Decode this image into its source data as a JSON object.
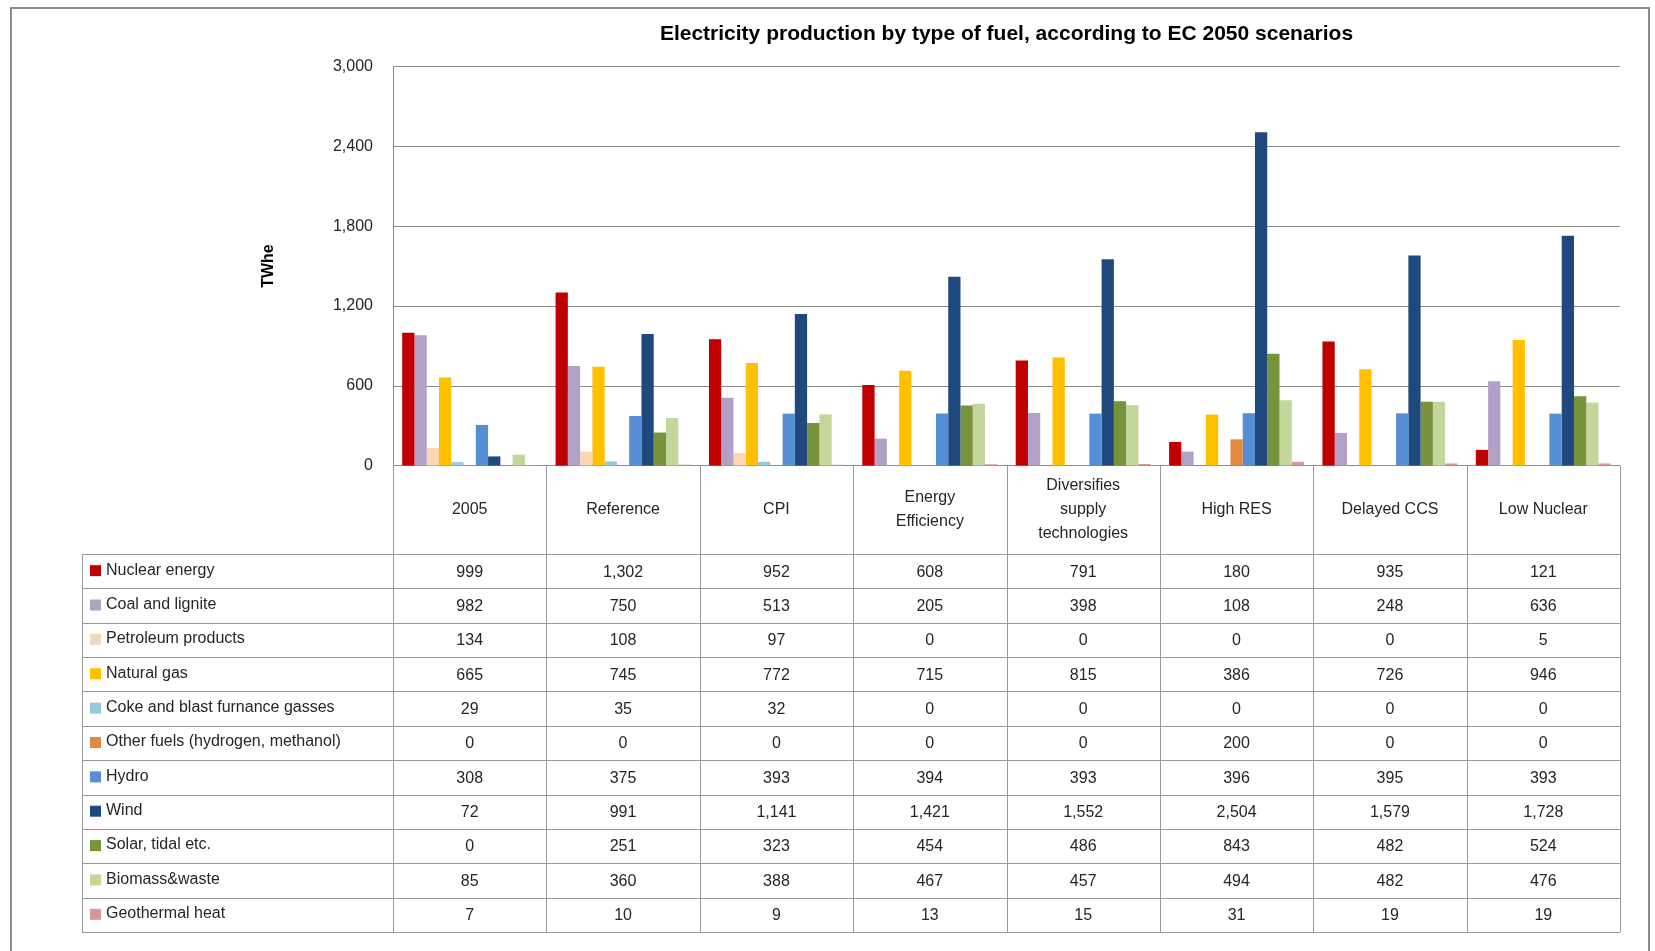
{
  "chart_data": {
    "type": "bar",
    "title": "Electricity production by type of fuel, according to EC 2050 scenarios",
    "ylabel": "TWhe",
    "categories": [
      "2005",
      "Reference",
      "CPI",
      "Energy Efficiency",
      "Diversifies supply technologies",
      "High RES",
      "Delayed CCS",
      "Low Nuclear"
    ],
    "series": [
      {
        "name": "Nuclear energy",
        "color": "#c00000",
        "values": [
          999,
          1302,
          952,
          608,
          791,
          180,
          935,
          121
        ],
        "value_labels": [
          "999",
          "1,302",
          "952",
          "608",
          "791",
          "180",
          "935",
          "121"
        ]
      },
      {
        "name": "Coal and lignite",
        "color": "#b2a1c7",
        "values": [
          982,
          750,
          513,
          205,
          398,
          108,
          248,
          636
        ],
        "value_labels": [
          "982",
          "750",
          "513",
          "205",
          "398",
          "108",
          "248",
          "636"
        ]
      },
      {
        "name": "Petroleum products",
        "color": "#fcd5b5",
        "values": [
          134,
          108,
          97,
          0,
          0,
          0,
          0,
          5
        ],
        "value_labels": [
          "134",
          "108",
          "97",
          "0",
          "0",
          "0",
          "0",
          "5"
        ]
      },
      {
        "name": "Natural gas",
        "color": "#ffc000",
        "values": [
          665,
          745,
          772,
          715,
          815,
          386,
          726,
          946
        ],
        "value_labels": [
          "665",
          "745",
          "772",
          "715",
          "815",
          "386",
          "726",
          "946"
        ]
      },
      {
        "name": "Coke and blast furnance gasses",
        "color": "#92cddc",
        "values": [
          29,
          35,
          32,
          0,
          0,
          0,
          0,
          0
        ],
        "value_labels": [
          "29",
          "35",
          "32",
          "0",
          "0",
          "0",
          "0",
          "0"
        ]
      },
      {
        "name": "Other fuels (hydrogen, methanol)",
        "color": "#e2893f",
        "values": [
          0,
          0,
          0,
          0,
          0,
          200,
          0,
          0
        ],
        "value_labels": [
          "0",
          "0",
          "0",
          "0",
          "0",
          "200",
          "0",
          "0"
        ]
      },
      {
        "name": "Hydro",
        "color": "#558ed5",
        "values": [
          308,
          375,
          393,
          394,
          393,
          396,
          395,
          393
        ],
        "value_labels": [
          "308",
          "375",
          "393",
          "394",
          "393",
          "396",
          "395",
          "393"
        ]
      },
      {
        "name": "Wind",
        "color": "#1f497d",
        "values": [
          72,
          991,
          1141,
          1421,
          1552,
          2504,
          1579,
          1728
        ],
        "value_labels": [
          "72",
          "991",
          "1,141",
          "1,421",
          "1,552",
          "2,504",
          "1,579",
          "1,728"
        ]
      },
      {
        "name": "Solar, tidal etc.",
        "color": "#77933c",
        "values": [
          0,
          251,
          323,
          454,
          486,
          843,
          482,
          524
        ],
        "value_labels": [
          "0",
          "251",
          "323",
          "454",
          "486",
          "843",
          "482",
          "524"
        ]
      },
      {
        "name": "Biomass&waste",
        "color": "#c3d69b",
        "values": [
          85,
          360,
          388,
          467,
          457,
          494,
          482,
          476
        ],
        "value_labels": [
          "85",
          "360",
          "388",
          "467",
          "457",
          "494",
          "482",
          "476"
        ]
      },
      {
        "name": "Geothermal heat",
        "color": "#d99694",
        "values": [
          7,
          10,
          9,
          13,
          15,
          31,
          19,
          19
        ],
        "value_labels": [
          "7",
          "10",
          "9",
          "13",
          "15",
          "31",
          "19",
          "19"
        ]
      }
    ],
    "ylim": [
      0,
      3000
    ],
    "yticks": [
      0,
      600,
      {
        "value": 1200,
        "label": "1,200"
      },
      {
        "value": 1800,
        "label": "1,800"
      },
      {
        "value": 2400,
        "label": "2,400"
      },
      {
        "value": 3000,
        "label": "3,000"
      }
    ],
    "grid": "y",
    "legend": "bottom"
  }
}
